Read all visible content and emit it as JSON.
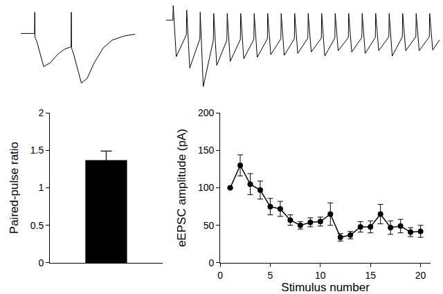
{
  "chart_data": [
    {
      "type": "line",
      "tick_labels": false,
      "color": "#000000",
      "x": [
        0,
        12,
        12.2,
        12.4,
        14,
        20,
        26,
        32,
        38,
        44,
        44.2,
        44.4,
        46,
        53,
        58,
        64,
        72,
        80,
        90,
        100
      ],
      "values": [
        0,
        0,
        32,
        -6,
        -12,
        -50,
        -44,
        -32,
        -24,
        -20,
        32,
        -22,
        -30,
        -75,
        -68,
        -45,
        -22,
        -10,
        -4,
        -1
      ],
      "xlim": [
        0,
        100
      ],
      "ylim": [
        -80,
        35
      ]
    },
    {
      "type": "line",
      "tick_labels": false,
      "color": "#000000",
      "x": [
        0,
        2,
        2.1,
        3,
        6,
        6.1,
        7,
        10,
        10.1,
        11,
        14,
        14.1,
        15,
        18,
        18.1,
        19,
        22,
        22.1,
        23,
        26,
        26.1,
        27,
        30,
        30.1,
        31,
        34,
        34.1,
        35,
        38,
        38.1,
        39,
        42,
        42.1,
        43,
        46,
        46.1,
        47,
        50,
        50.1,
        51,
        54,
        54.1,
        55,
        58,
        58.1,
        59,
        62,
        62.1,
        63,
        66,
        66.1,
        67,
        70,
        70.1,
        71,
        74,
        74.1,
        75,
        78,
        78.1,
        79,
        81
      ],
      "values": [
        0,
        0,
        22,
        -55,
        -22,
        15,
        -72,
        -28,
        12,
        -100,
        -30,
        10,
        -68,
        -30,
        10,
        -62,
        -29,
        10,
        -58,
        -29,
        10,
        -56,
        -28,
        10,
        -52,
        -28,
        10,
        -53,
        -28,
        10,
        -50,
        -27,
        10,
        -48,
        -27,
        10,
        -54,
        -27,
        10,
        -46,
        -26,
        10,
        -48,
        -26,
        10,
        -50,
        -26,
        10,
        -46,
        -25,
        10,
        -54,
        -25,
        10,
        -46,
        -25,
        10,
        -46,
        -25,
        10,
        -45,
        -30
      ],
      "xlim": [
        0,
        81
      ],
      "ylim": [
        -105,
        25
      ]
    },
    {
      "type": "bar",
      "tick_labels": "y",
      "color": "#000000",
      "grid": false,
      "ylabel": "Paired-pulse ratio",
      "categories": [
        null
      ],
      "values": [
        1.37
      ],
      "errors": [
        0.12
      ],
      "ylim": [
        0,
        2
      ],
      "yticks": [
        0,
        0.5,
        1,
        1.5,
        2
      ]
    },
    {
      "type": "line",
      "color": "#000000",
      "marker": "circle",
      "grid": false,
      "xlabel": "Stimulus number",
      "ylabel": "eEPSC amplitude (pA)",
      "x": [
        1,
        2,
        3,
        4,
        5,
        6,
        7,
        8,
        9,
        10,
        11,
        12,
        13,
        14,
        15,
        16,
        17,
        18,
        19,
        20
      ],
      "values": [
        100,
        130,
        105,
        97,
        75,
        72,
        57,
        50,
        54,
        55,
        65,
        34,
        37,
        48,
        48,
        65,
        47,
        49,
        41,
        42
      ],
      "errors": [
        0,
        14,
        14,
        12,
        11,
        10,
        7,
        5,
        6,
        6,
        15,
        5,
        5,
        7,
        8,
        13,
        9,
        9,
        6,
        8
      ],
      "xlim": [
        0,
        21
      ],
      "xticks": [
        0,
        5,
        10,
        15,
        20
      ],
      "ylim": [
        0,
        200
      ],
      "yticks": [
        0,
        50,
        100,
        150,
        200
      ]
    }
  ]
}
